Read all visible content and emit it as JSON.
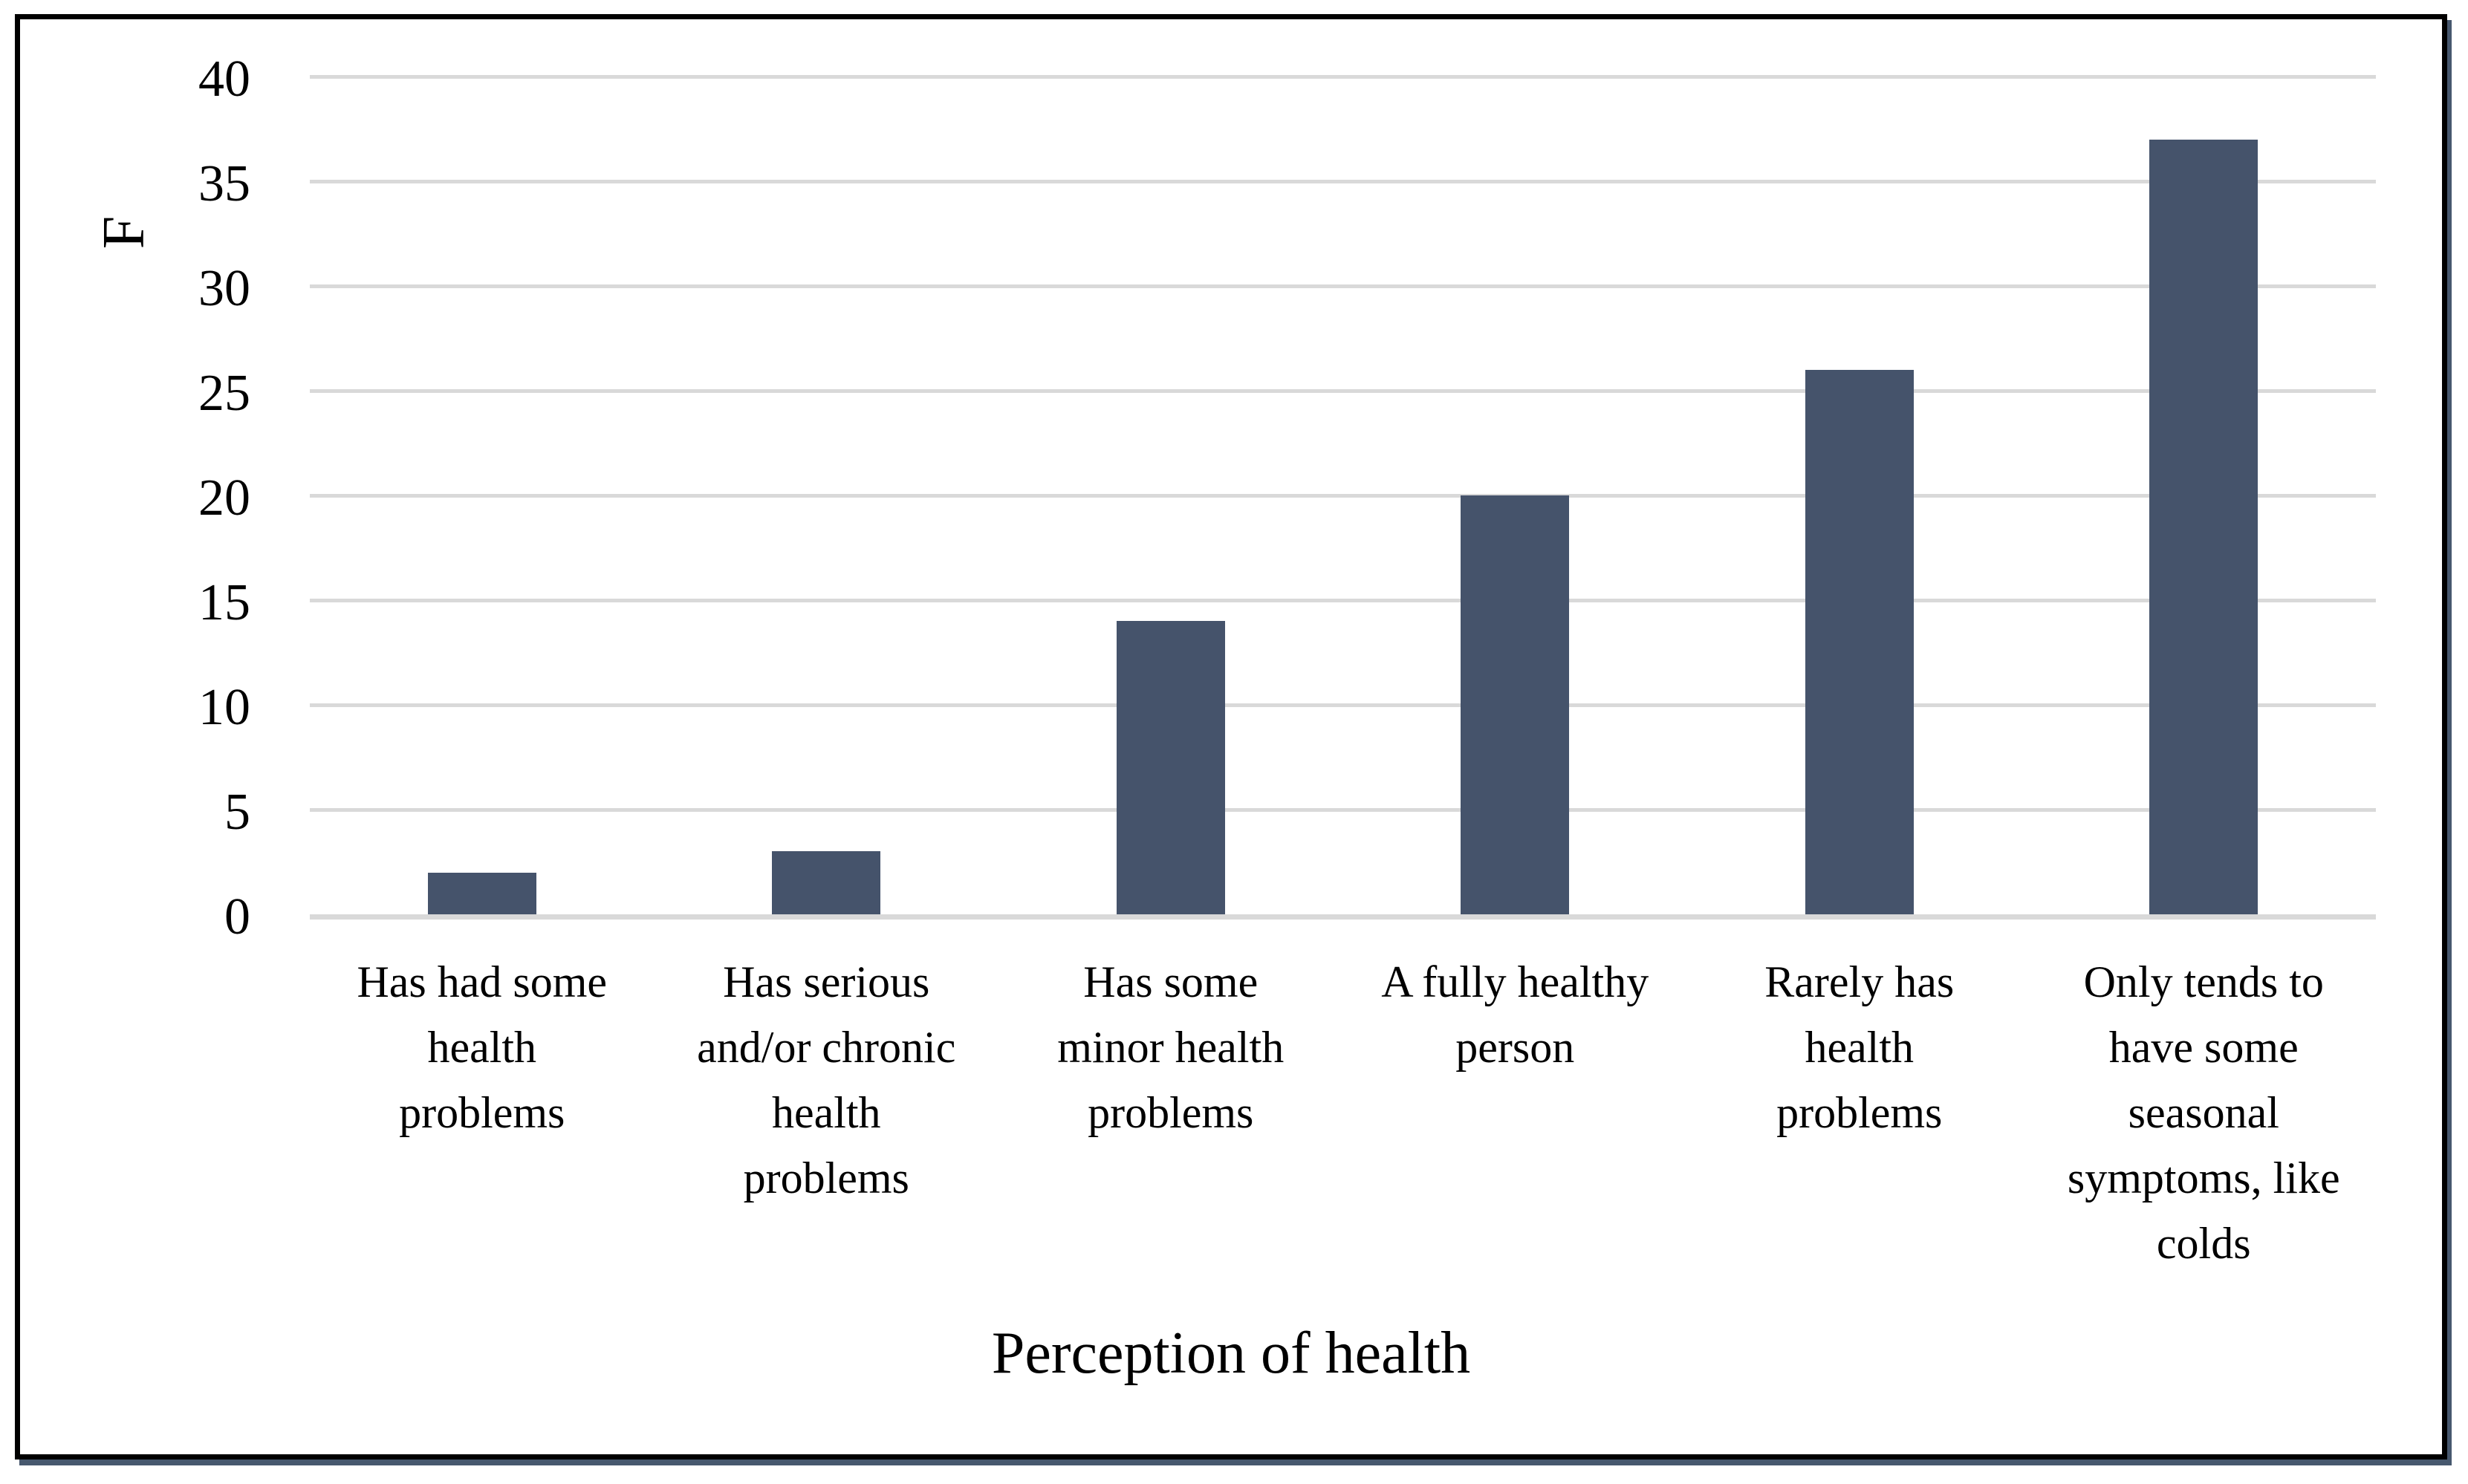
{
  "figure": {
    "background": "#FFFFFF",
    "border_color": "#000000",
    "shadow_color": "#47586E"
  },
  "chart_data": {
    "type": "bar",
    "title": "",
    "xlabel": "Perception of health",
    "ylabel": "F",
    "ylim": [
      0,
      40
    ],
    "ytick_step": 5,
    "yticks": [
      0,
      5,
      10,
      15,
      20,
      25,
      30,
      35,
      40
    ],
    "grid": true,
    "legend": "none",
    "bar_color": "#45536B",
    "gridline_color": "#D9D9D9",
    "categories": [
      "Has had some health problems",
      "Has serious and/or chronic health problems",
      "Has some minor health problems",
      "A fully healthy person",
      "Rarely has health problems",
      "Only tends to have some seasonal symptoms, like colds"
    ],
    "category_lines": [
      [
        "Has had some",
        "health",
        "problems"
      ],
      [
        "Has serious",
        "and/or chronic",
        "health",
        "problems"
      ],
      [
        "Has some",
        "minor health",
        "problems"
      ],
      [
        "A fully healthy",
        "person"
      ],
      [
        "Rarely has",
        "health",
        "problems"
      ],
      [
        "Only tends to",
        "have some",
        "seasonal",
        "symptoms, like",
        "colds"
      ]
    ],
    "values": [
      2,
      3,
      14,
      20,
      26,
      37
    ]
  }
}
